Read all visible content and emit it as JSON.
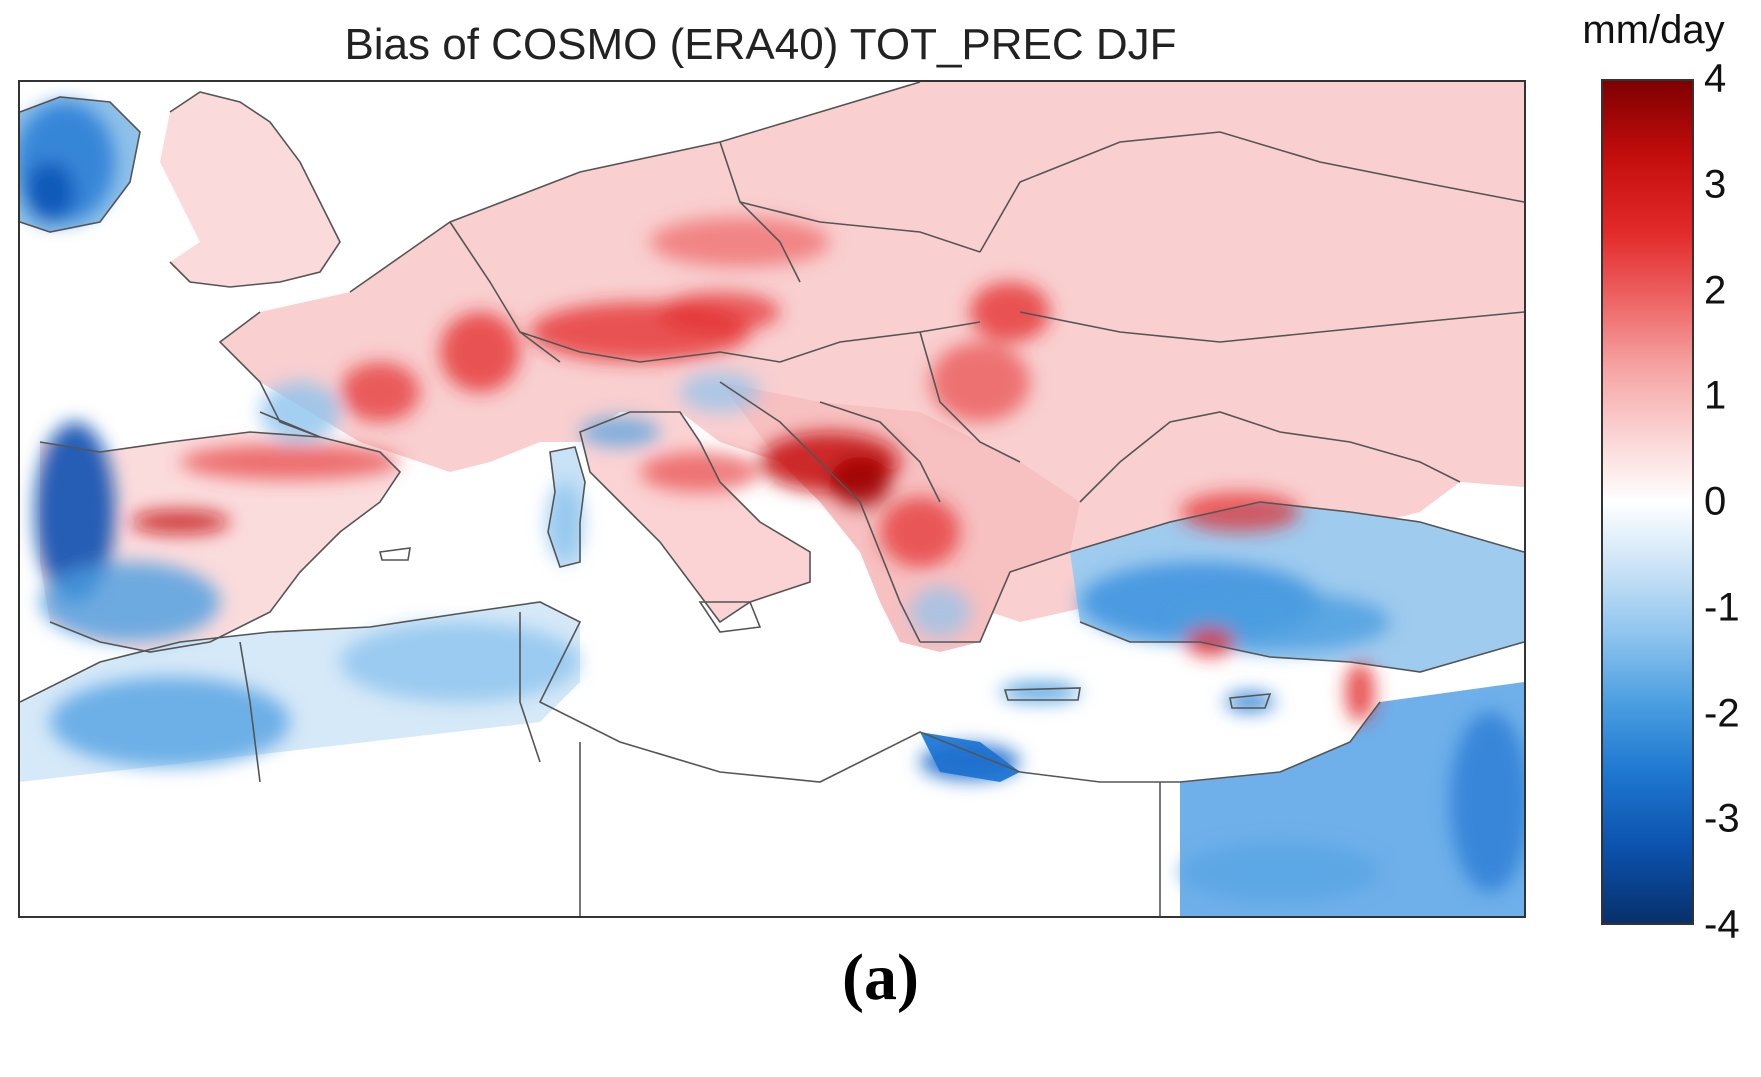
{
  "chart_data": {
    "type": "heatmap",
    "title": "Bias of COSMO (ERA40) TOT_PREC DJF",
    "colorbar": {
      "label": "mm/day",
      "range": [
        -4,
        4
      ],
      "ticks": [
        "4",
        "3",
        "2",
        "1",
        "0",
        "-1",
        "-2",
        "-3",
        "-4"
      ],
      "colors": {
        "min": "#08306b",
        "neg_mid": "#4a9ee0",
        "zero": "#ffffff",
        "pos_mid": "#ee6464",
        "max": "#7e0000"
      }
    },
    "grid": false
  },
  "panel_label": "(a)"
}
